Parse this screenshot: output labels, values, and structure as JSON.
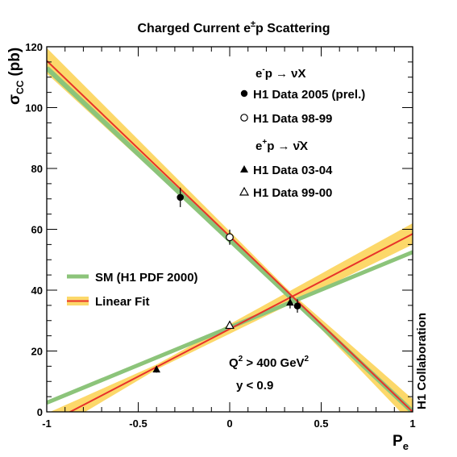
{
  "chart_data": {
    "type": "line",
    "title_main": "Charged Current e",
    "title_sup": "±",
    "title_end": "p Scattering",
    "xlabel_main": "P",
    "xlabel_sub": "e",
    "ylabel_sigma": "σ",
    "ylabel_sub": "CC",
    "ylabel_unit": "(pb)",
    "side_label": "H1 Collaboration",
    "xlim": [
      -1,
      1
    ],
    "ylim": [
      0,
      120
    ],
    "x_ticks": [
      -1,
      -0.5,
      0,
      0.5,
      1
    ],
    "x_tick_labels": [
      "-1",
      "-0.5",
      "0",
      "0.5",
      "1"
    ],
    "y_ticks": [
      0,
      20,
      40,
      60,
      80,
      100,
      120
    ],
    "y_tick_labels": [
      "0",
      "20",
      "40",
      "60",
      "80",
      "100",
      "120"
    ],
    "colors": {
      "sm": "#8cc47a",
      "fit": "#e8322a",
      "band": "#fcd86a"
    },
    "legend_top": {
      "eminus_reaction": {
        "pre": "e",
        "sup": "-",
        "post": "p → νX"
      },
      "eplus_reaction": {
        "pre": "e",
        "sup": "+",
        "post": "p → ν̄X"
      },
      "entries": [
        {
          "label": "H1 Data  2005 (prel.)",
          "marker": "filled-circle"
        },
        {
          "label": "H1 Data  98-99",
          "marker": "open-circle"
        },
        {
          "label": "H1 Data 03-04",
          "marker": "filled-triangle"
        },
        {
          "label": "H1 Data 99-00",
          "marker": "open-triangle"
        }
      ]
    },
    "legend_left": {
      "sm_label": "SM (H1 PDF 2000)",
      "fit_label": "Linear Fit"
    },
    "cuts": {
      "q2_pre": "Q",
      "q2_sup": "2",
      "q2_post": " > 400 GeV",
      "q2_unit_sup": "2",
      "y_cut": "y < 0.9"
    },
    "sm_lines": {
      "eminus": [
        [
          -1,
          113
        ],
        [
          1,
          0
        ]
      ],
      "eplus": [
        [
          -1,
          3
        ],
        [
          1,
          52.5
        ]
      ]
    },
    "fit_lines": {
      "eminus": [
        [
          -1,
          115.4
        ],
        [
          1,
          0
        ]
      ],
      "eplus": [
        [
          -1,
          -4
        ],
        [
          1,
          58.5
        ]
      ]
    },
    "bands": {
      "eminus": {
        "center": [
          [
            -1,
            115.4
          ],
          [
            1,
            0
          ]
        ],
        "halfwidth_at": [
          [
            -1,
            4.2
          ],
          [
            0.33,
            0.8
          ],
          [
            1,
            4.2
          ]
        ]
      },
      "eplus": {
        "center": [
          [
            -1,
            -4
          ],
          [
            1,
            58.5
          ]
        ],
        "halfwidth_at": [
          [
            -1,
            3.5
          ],
          [
            -0.4,
            0.8
          ],
          [
            1,
            3.5
          ]
        ]
      }
    },
    "series": [
      {
        "marker": "filled-circle",
        "points": [
          {
            "x": -0.27,
            "y": 70.5,
            "err": 3.2
          },
          {
            "x": 0.37,
            "y": 34.8,
            "err": 2.2
          }
        ]
      },
      {
        "marker": "open-circle",
        "points": [
          {
            "x": 0.0,
            "y": 57.4,
            "err": 2.5
          }
        ]
      },
      {
        "marker": "filled-triangle",
        "points": [
          {
            "x": -0.4,
            "y": 14.0,
            "err": 1.1
          },
          {
            "x": 0.33,
            "y": 36.0,
            "err": 2.0
          }
        ]
      },
      {
        "marker": "open-triangle",
        "points": [
          {
            "x": 0.0,
            "y": 28.5,
            "err": 1.2
          }
        ]
      }
    ]
  }
}
